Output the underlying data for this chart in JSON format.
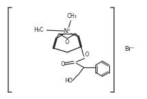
{
  "bg_color": "#ffffff",
  "line_color": "#2a2a2a",
  "text_color": "#1a1a1a",
  "bracket_color": "#444444",
  "figsize": [
    2.14,
    1.44
  ],
  "dpi": 100,
  "br_label": "Br⁻",
  "n_label": "N⁺",
  "ch3_top": "CH₃",
  "h3c_left": "H₃C",
  "o_epoxide": "O",
  "o_ester": "O",
  "o_carbonyl": "O",
  "ho_label": "HO"
}
